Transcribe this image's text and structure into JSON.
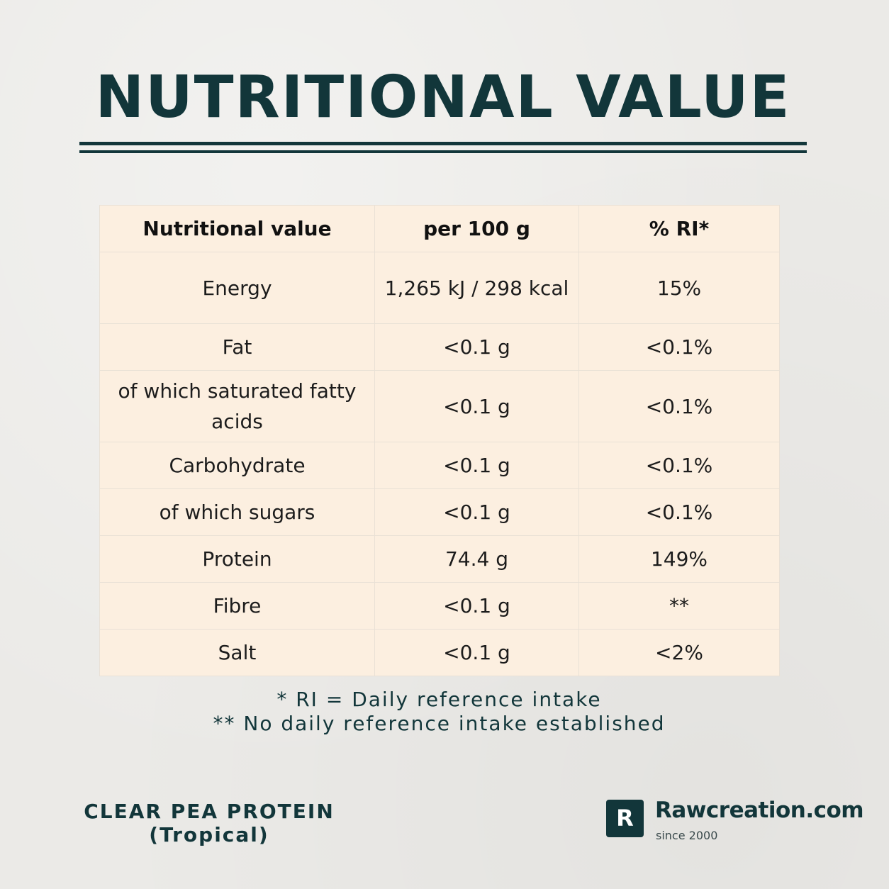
{
  "title": "NUTRITIONAL VALUE",
  "table": {
    "headers": [
      "Nutritional value",
      "per 100 g",
      "% RI*"
    ],
    "rows": [
      {
        "nutrient": "Energy",
        "per100g": "1,265 kJ / 298 kcal",
        "ri": "15%"
      },
      {
        "nutrient": "Fat",
        "per100g": "<0.1 g",
        "ri": "<0.1%"
      },
      {
        "nutrient": "of which saturated fatty acids",
        "per100g": "<0.1 g",
        "ri": "<0.1%"
      },
      {
        "nutrient": "Carbohydrate",
        "per100g": "<0.1 g",
        "ri": "<0.1%"
      },
      {
        "nutrient": "of which sugars",
        "per100g": "<0.1 g",
        "ri": "<0.1%"
      },
      {
        "nutrient": "Protein",
        "per100g": "74.4 g",
        "ri": "149%"
      },
      {
        "nutrient": "Fibre",
        "per100g": "<0.1 g",
        "ri": "**"
      },
      {
        "nutrient": "Salt",
        "per100g": "<0.1 g",
        "ri": "<2%"
      }
    ]
  },
  "footnotes": [
    "* RI = Daily reference intake",
    "** No daily reference intake established"
  ],
  "product": {
    "name": "CLEAR PEA PROTEIN",
    "variant": "(Tropical)"
  },
  "brand": {
    "logo_letter": "R",
    "name": "Rawcreation.com",
    "tagline": "since 2000"
  },
  "colors": {
    "primary": "#12363a",
    "table_background": "#fcefe0",
    "page_background": "#ebeae7"
  }
}
